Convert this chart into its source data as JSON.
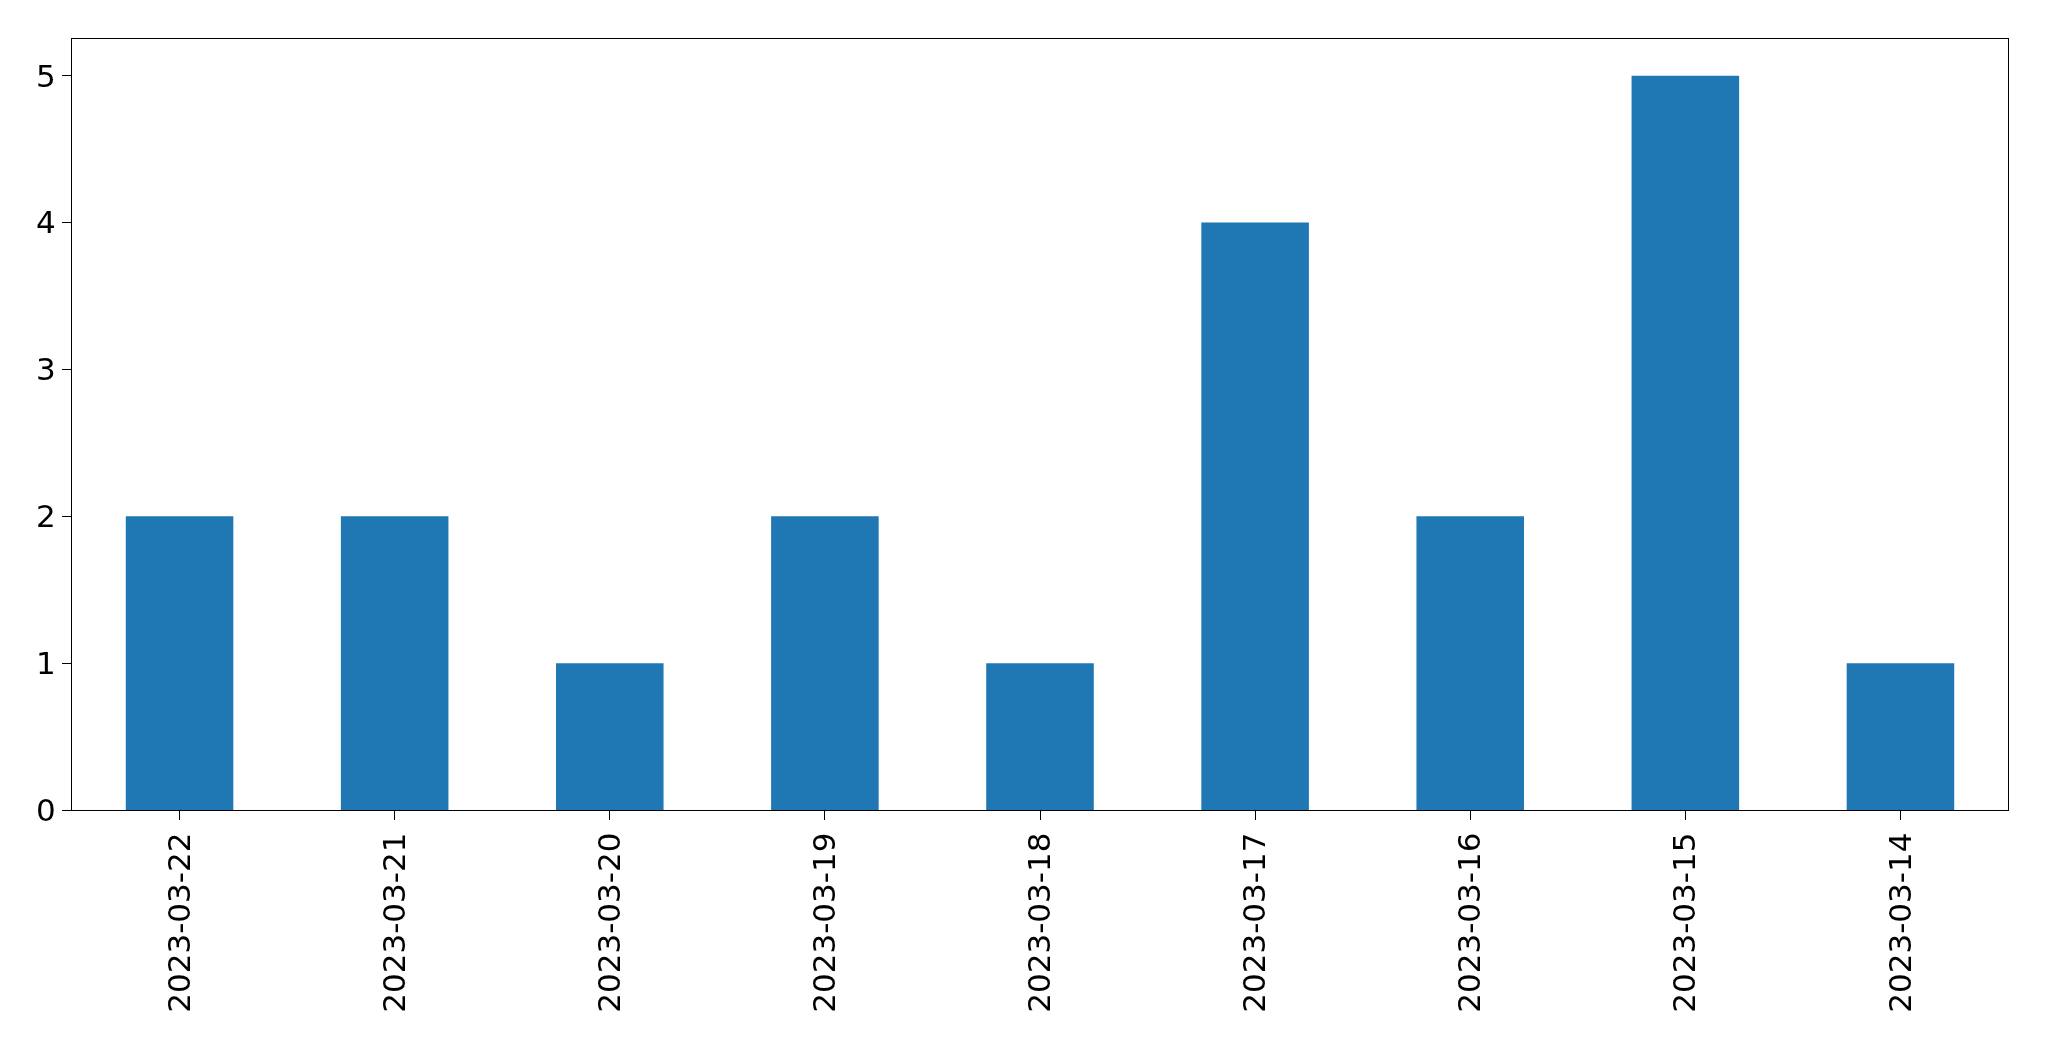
{
  "chart_data": {
    "type": "bar",
    "categories": [
      "2023-03-22",
      "2023-03-21",
      "2023-03-20",
      "2023-03-19",
      "2023-03-18",
      "2023-03-17",
      "2023-03-16",
      "2023-03-15",
      "2023-03-14"
    ],
    "values": [
      2,
      2,
      1,
      2,
      1,
      4,
      2,
      5,
      1
    ],
    "color": "#1f77b4",
    "ylim": [
      0,
      5.25
    ],
    "yticks": [
      0,
      1,
      2,
      3,
      4,
      5
    ],
    "grid": false,
    "legend": false
  }
}
